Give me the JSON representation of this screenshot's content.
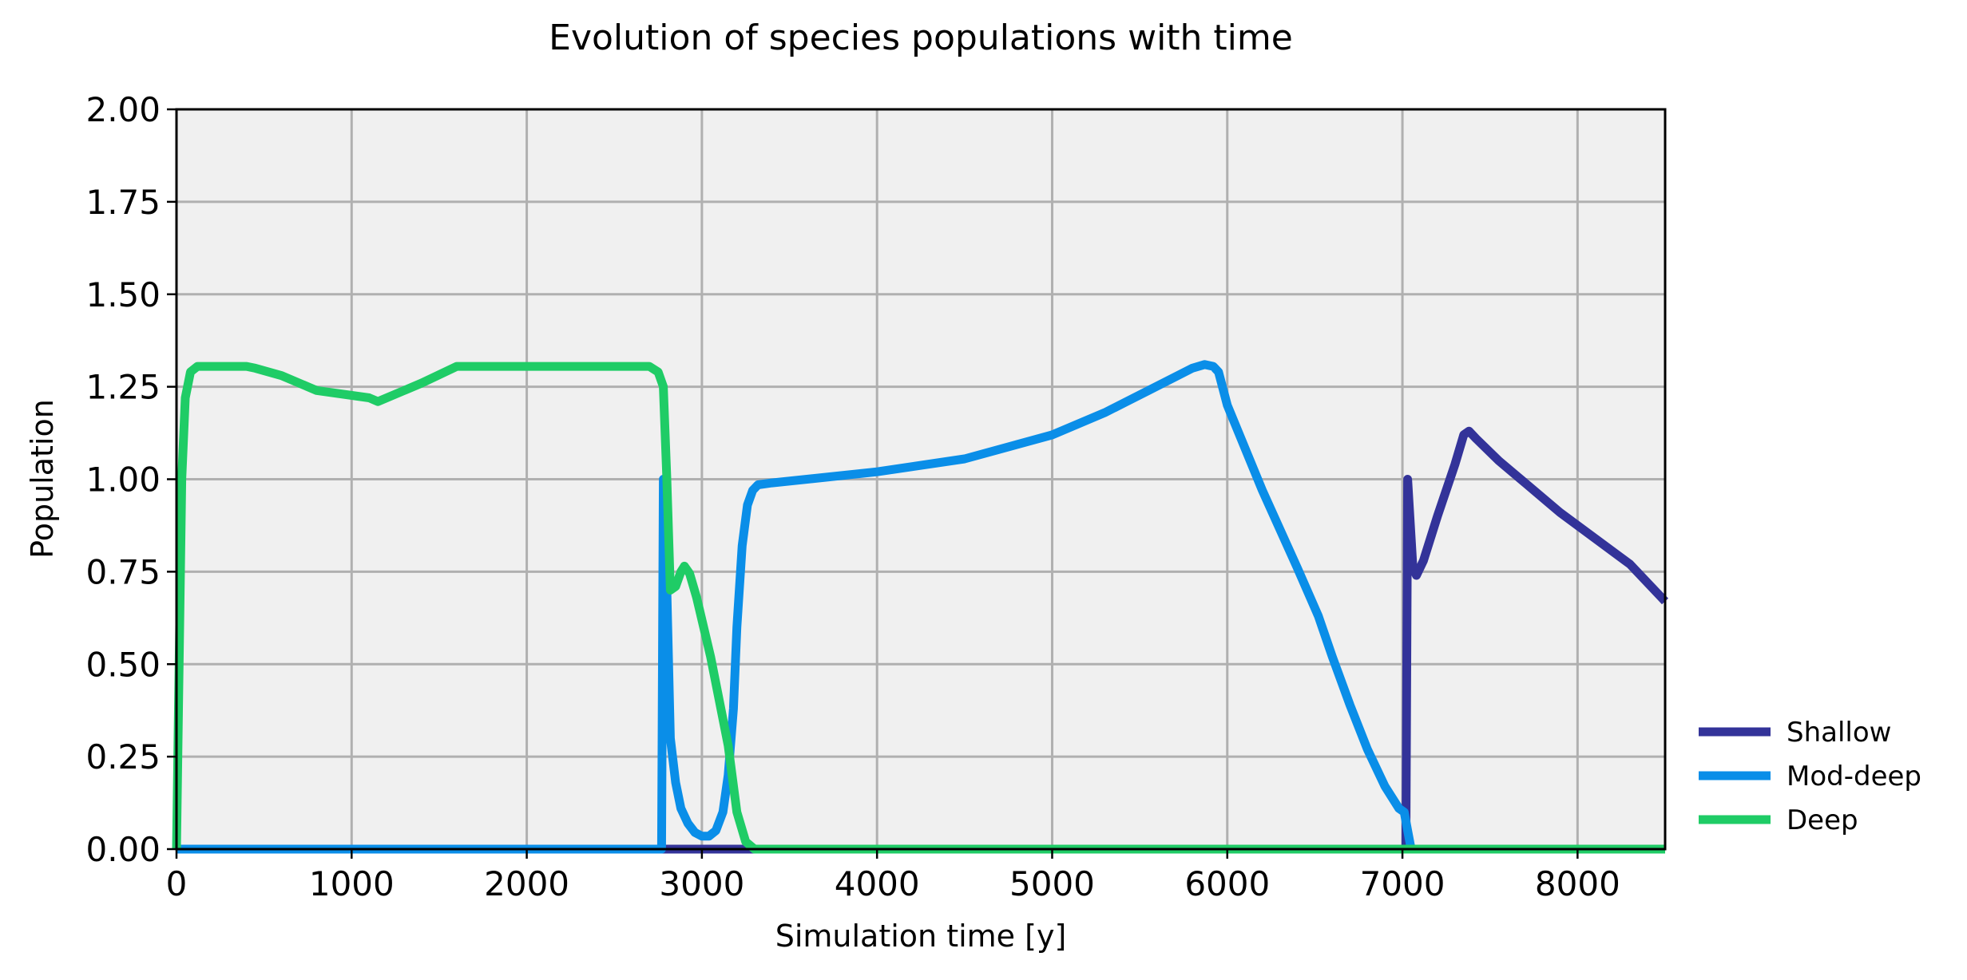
{
  "chart_data": {
    "type": "line",
    "title": "Evolution of species populations with time",
    "xlabel": "Simulation time [y]",
    "ylabel": "Population",
    "xlim": [
      0,
      8500
    ],
    "ylim": [
      0,
      2.0
    ],
    "xticks": [
      0,
      1000,
      2000,
      3000,
      4000,
      5000,
      6000,
      7000,
      8000
    ],
    "xtick_labels": [
      "0",
      "1000",
      "2000",
      "3000",
      "4000",
      "5000",
      "6000",
      "7000",
      "8000"
    ],
    "yticks": [
      0,
      0.25,
      0.5,
      0.75,
      1.0,
      1.25,
      1.5,
      1.75,
      2.0
    ],
    "ytick_labels": [
      "0.00",
      "0.25",
      "0.50",
      "0.75",
      "1.00",
      "1.25",
      "1.50",
      "1.75",
      "2.00"
    ],
    "grid": true,
    "plot_background": "#f0f0f0",
    "legend_position": "outside-bottom-right",
    "series": [
      {
        "name": "Shallow",
        "color": "#333399",
        "points": [
          [
            0,
            0
          ],
          [
            2780,
            0
          ],
          [
            3200,
            0
          ],
          [
            7000,
            0
          ],
          [
            7020,
            0
          ],
          [
            7030,
            1.0
          ],
          [
            7060,
            0.76
          ],
          [
            7080,
            0.74
          ],
          [
            7120,
            0.78
          ],
          [
            7200,
            0.9
          ],
          [
            7300,
            1.04
          ],
          [
            7350,
            1.12
          ],
          [
            7380,
            1.13
          ],
          [
            7420,
            1.11
          ],
          [
            7550,
            1.05
          ],
          [
            7700,
            0.99
          ],
          [
            7900,
            0.91
          ],
          [
            8100,
            0.84
          ],
          [
            8300,
            0.77
          ],
          [
            8500,
            0.67
          ]
        ]
      },
      {
        "name": "Mod-deep",
        "color": "#0a8ee8",
        "points": [
          [
            0,
            0
          ],
          [
            2770,
            0
          ],
          [
            2775,
            0.5
          ],
          [
            2780,
            1.0
          ],
          [
            2800,
            0.7
          ],
          [
            2820,
            0.3
          ],
          [
            2850,
            0.18
          ],
          [
            2880,
            0.11
          ],
          [
            2920,
            0.07
          ],
          [
            2960,
            0.045
          ],
          [
            3000,
            0.035
          ],
          [
            3040,
            0.035
          ],
          [
            3080,
            0.05
          ],
          [
            3120,
            0.1
          ],
          [
            3150,
            0.2
          ],
          [
            3180,
            0.38
          ],
          [
            3200,
            0.6
          ],
          [
            3230,
            0.82
          ],
          [
            3260,
            0.93
          ],
          [
            3290,
            0.97
          ],
          [
            3320,
            0.985
          ],
          [
            3400,
            0.99
          ],
          [
            3600,
            1.0
          ],
          [
            4000,
            1.02
          ],
          [
            4500,
            1.055
          ],
          [
            5000,
            1.12
          ],
          [
            5300,
            1.18
          ],
          [
            5550,
            1.24
          ],
          [
            5800,
            1.3
          ],
          [
            5870,
            1.31
          ],
          [
            5920,
            1.305
          ],
          [
            5950,
            1.29
          ],
          [
            6000,
            1.2
          ],
          [
            6200,
            0.97
          ],
          [
            6400,
            0.76
          ],
          [
            6520,
            0.63
          ],
          [
            6600,
            0.52
          ],
          [
            6700,
            0.39
          ],
          [
            6800,
            0.27
          ],
          [
            6900,
            0.17
          ],
          [
            6980,
            0.11
          ],
          [
            7010,
            0.1
          ],
          [
            7030,
            0.05
          ],
          [
            7050,
            0.0
          ],
          [
            8500,
            0.0
          ]
        ]
      },
      {
        "name": "Deep",
        "color": "#1fcc66",
        "points": [
          [
            0,
            0
          ],
          [
            30,
            1.0
          ],
          [
            50,
            1.22
          ],
          [
            80,
            1.29
          ],
          [
            120,
            1.305
          ],
          [
            400,
            1.305
          ],
          [
            450,
            1.3
          ],
          [
            600,
            1.28
          ],
          [
            800,
            1.24
          ],
          [
            1100,
            1.22
          ],
          [
            1150,
            1.21
          ],
          [
            1400,
            1.26
          ],
          [
            1600,
            1.305
          ],
          [
            2700,
            1.305
          ],
          [
            2750,
            1.29
          ],
          [
            2780,
            1.25
          ],
          [
            2800,
            1.0
          ],
          [
            2820,
            0.7
          ],
          [
            2850,
            0.71
          ],
          [
            2880,
            0.75
          ],
          [
            2900,
            0.765
          ],
          [
            2930,
            0.745
          ],
          [
            2970,
            0.68
          ],
          [
            3050,
            0.52
          ],
          [
            3150,
            0.28
          ],
          [
            3200,
            0.1
          ],
          [
            3250,
            0.02
          ],
          [
            3300,
            0
          ],
          [
            8500,
            0
          ]
        ]
      }
    ]
  }
}
